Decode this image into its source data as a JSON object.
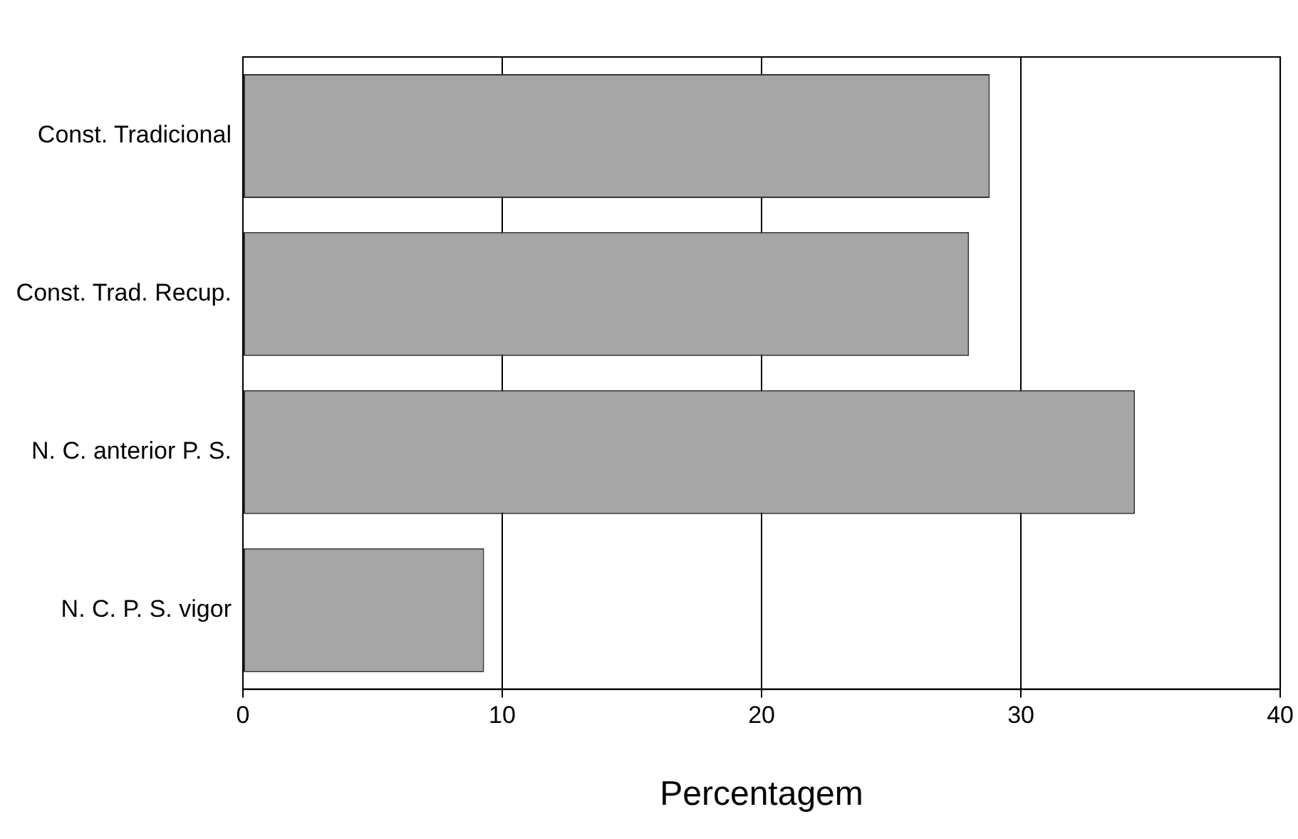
{
  "chart_data": {
    "type": "bar",
    "orientation": "horizontal",
    "xlabel": "Percentagem",
    "categories": [
      "Const. Tradicional",
      "Const. Trad. Recup.",
      "N. C. anterior P. S.",
      "N. C. P. S. vigor"
    ],
    "values": [
      28.8,
      28.0,
      34.4,
      9.3
    ],
    "color": "#a6a6a6",
    "xlim": [
      0,
      40
    ],
    "xticks": [
      0,
      10,
      20,
      30,
      40
    ],
    "grid": "x",
    "legend": false
  }
}
